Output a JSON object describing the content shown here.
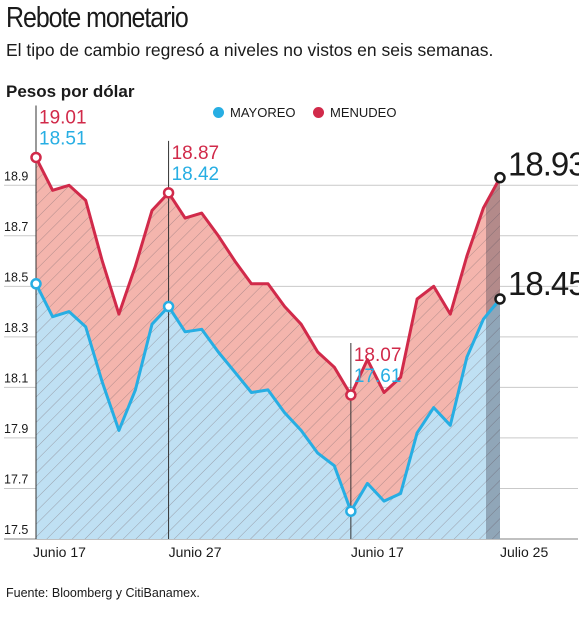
{
  "header": {
    "title": "Rebote monetario",
    "subtitle": "El tipo de cambio regresó a niveles no vistos en seis semanas.",
    "ylabel": "Pesos por dólar"
  },
  "legend": [
    {
      "label": "MAYOREO",
      "color": "#27aee3"
    },
    {
      "label": "MENUDEO",
      "color": "#d12a4a"
    }
  ],
  "source": "Fuente: Bloomberg y CitiBanamex.",
  "chart_data": {
    "type": "area",
    "ylim": [
      17.5,
      19.0
    ],
    "y_ticks": [
      "17.5",
      "17.7",
      "17.9",
      "18.1",
      "18.3",
      "18.5",
      "18.7",
      "18.9"
    ],
    "x_tick_labels": [
      "Junio 17",
      "Junio 27",
      "Junio 17",
      "Julio 25"
    ],
    "series": [
      {
        "name": "MAYOREO",
        "color": "#27aee3",
        "values": [
          18.51,
          18.38,
          18.4,
          18.34,
          18.12,
          17.93,
          18.09,
          18.35,
          18.42,
          18.32,
          18.33,
          18.24,
          18.16,
          18.08,
          18.09,
          18.0,
          17.93,
          17.84,
          17.79,
          17.61,
          17.72,
          17.65,
          17.68,
          17.92,
          18.02,
          17.95,
          18.22,
          18.37,
          18.45
        ]
      },
      {
        "name": "MENUDEO",
        "color": "#d12a4a",
        "values": [
          19.01,
          18.88,
          18.9,
          18.84,
          18.6,
          18.39,
          18.58,
          18.8,
          18.87,
          18.77,
          18.79,
          18.7,
          18.6,
          18.51,
          18.51,
          18.42,
          18.35,
          18.24,
          18.18,
          18.07,
          18.21,
          18.08,
          18.14,
          18.45,
          18.5,
          18.39,
          18.62,
          18.81,
          18.93
        ]
      }
    ],
    "annotations": [
      {
        "index": 0,
        "menudeo": "19.01",
        "mayoreo": "18.51"
      },
      {
        "index": 8,
        "menudeo": "18.87",
        "mayoreo": "18.42"
      },
      {
        "index": 19,
        "menudeo": "18.07",
        "mayoreo": "17.61"
      }
    ],
    "final_labels": {
      "menudeo": "18.93",
      "mayoreo": "18.45"
    }
  }
}
